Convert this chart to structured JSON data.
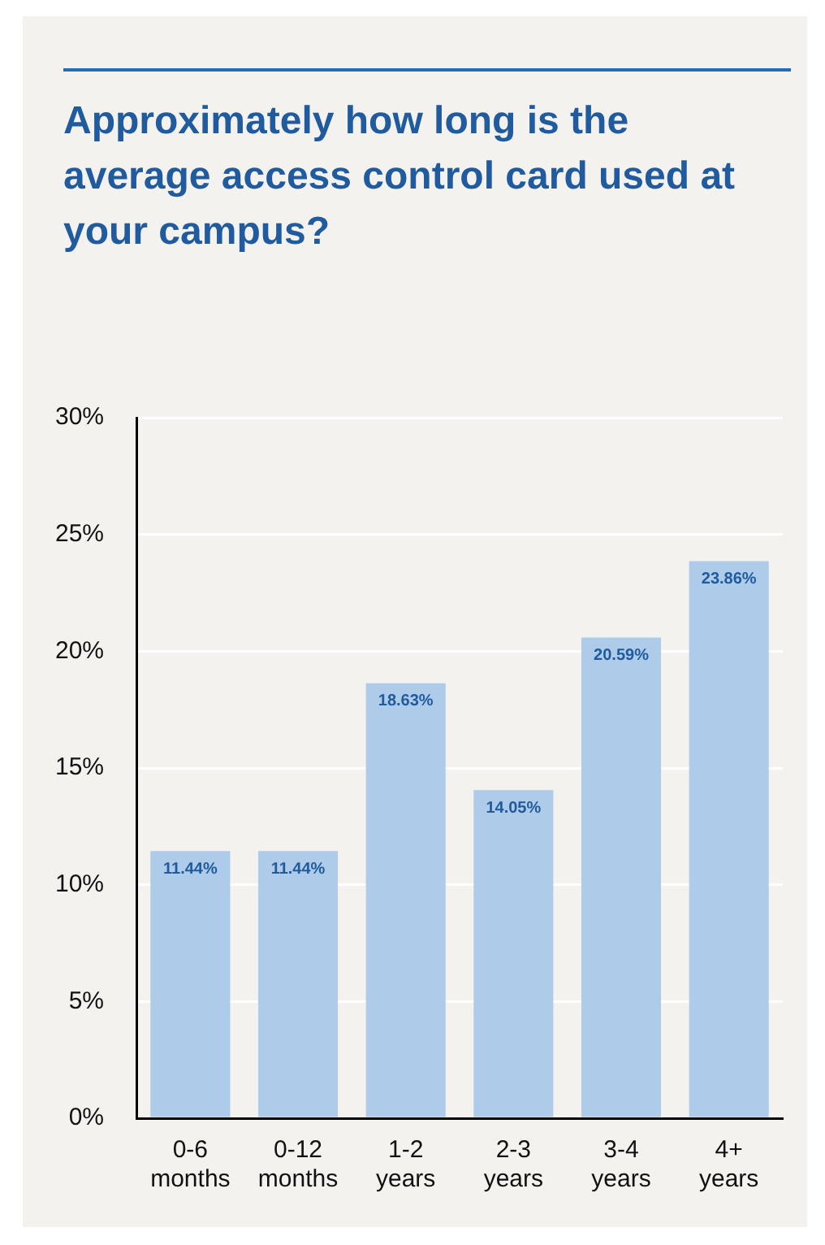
{
  "chart_data": {
    "type": "bar",
    "title": "Approximately how long is the average access control card used at your campus?",
    "categories": [
      "0-6 months",
      "0-12 months",
      "1-2 years",
      "2-3 years",
      "3-4 years",
      "4+ years"
    ],
    "values": [
      11.44,
      11.44,
      18.63,
      14.05,
      20.59,
      23.86
    ],
    "value_labels": [
      "11.44%",
      "11.44%",
      "18.63%",
      "14.05%",
      "20.59%",
      "23.86%"
    ],
    "color": "#aecbea",
    "ylim": [
      0,
      30
    ],
    "yticks": [
      {
        "value": 0,
        "label": "0%"
      },
      {
        "value": 5,
        "label": "5%"
      },
      {
        "value": 10,
        "label": "10%"
      },
      {
        "value": 15,
        "label": "15%"
      },
      {
        "value": 20,
        "label": "20%"
      },
      {
        "value": 25,
        "label": "25%"
      },
      {
        "value": 30,
        "label": "30%"
      }
    ],
    "grid": "y"
  }
}
